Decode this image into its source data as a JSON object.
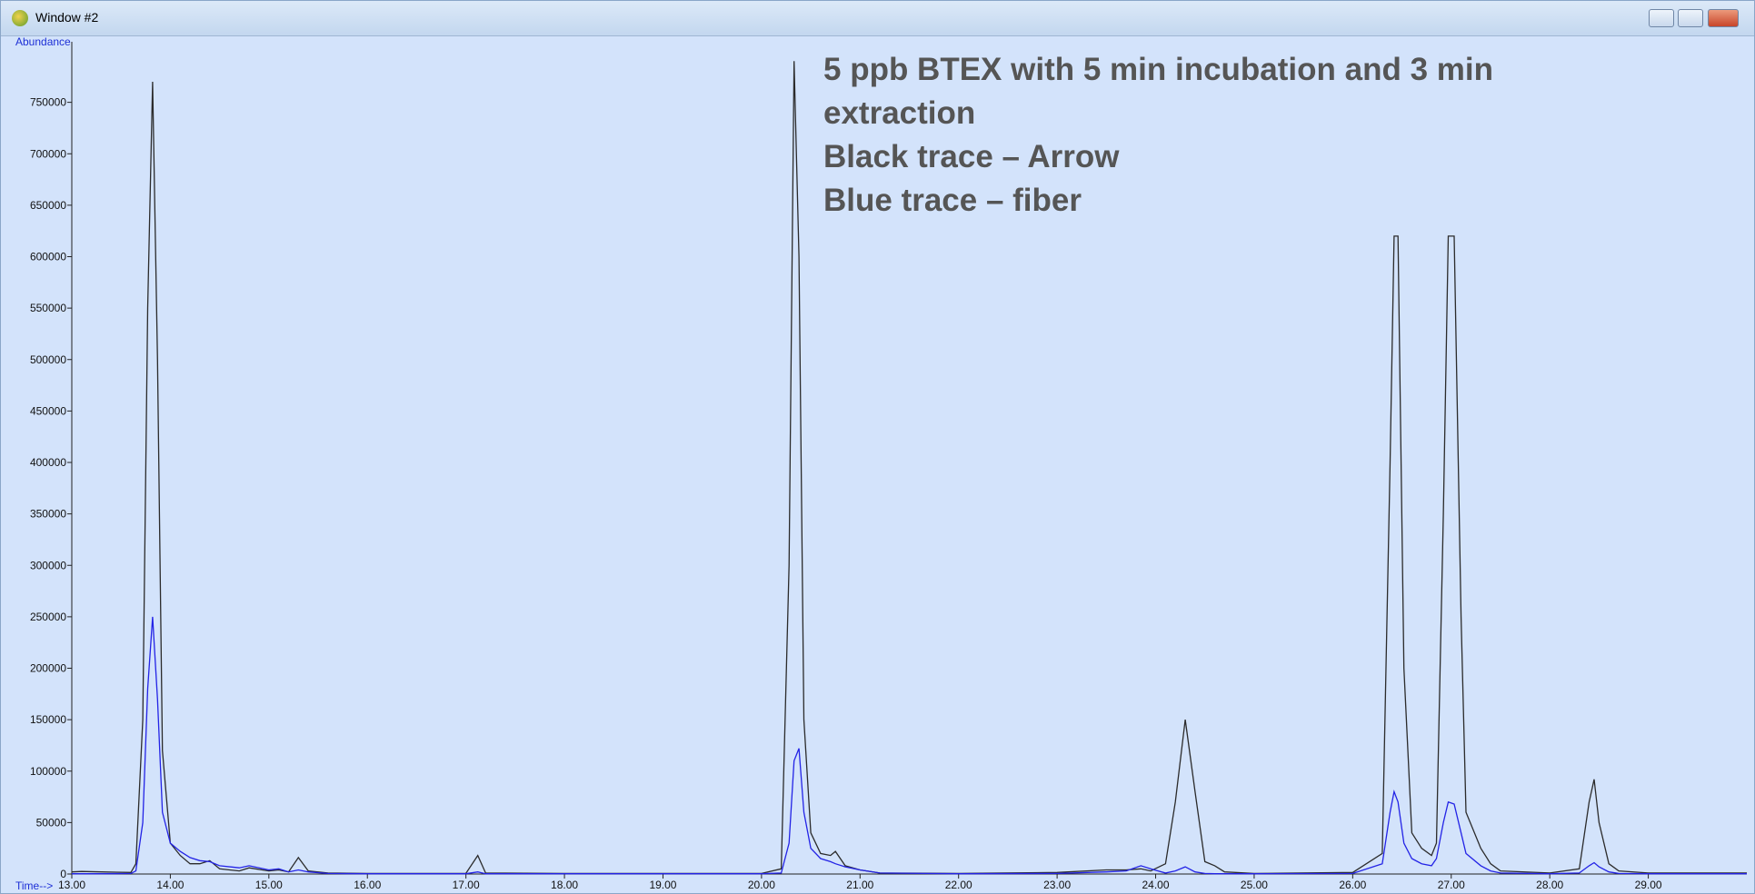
{
  "window": {
    "title": "Window #2"
  },
  "chart_data": {
    "type": "line",
    "ylabel": "Abundance",
    "xlabel": "Time-->",
    "annotations": [
      "5 ppb BTEX with 5 min incubation and 3 min extraction",
      "Black trace – Arrow",
      "Blue trace – fiber"
    ],
    "x": [
      13.0,
      13.1,
      13.3,
      13.6,
      13.65,
      13.72,
      13.77,
      13.82,
      13.87,
      13.92,
      14.0,
      14.1,
      14.2,
      14.3,
      14.4,
      14.5,
      14.7,
      14.8,
      15.0,
      15.1,
      15.2,
      15.3,
      15.4,
      15.6,
      16.0,
      17.0,
      17.12,
      17.2,
      18.0,
      20.0,
      20.2,
      20.28,
      20.33,
      20.38,
      20.43,
      20.5,
      20.6,
      20.7,
      20.75,
      20.85,
      21.0,
      21.2,
      22.0,
      23.0,
      23.5,
      23.7,
      23.85,
      23.95,
      24.1,
      24.2,
      24.3,
      24.4,
      24.5,
      24.6,
      24.7,
      25.0,
      26.0,
      26.3,
      26.38,
      26.42,
      26.46,
      26.52,
      26.6,
      26.7,
      26.8,
      26.85,
      26.92,
      26.97,
      27.03,
      27.1,
      27.15,
      27.3,
      27.4,
      27.5,
      28.0,
      28.3,
      28.4,
      28.45,
      28.5,
      28.6,
      28.7,
      29.0,
      30.0
    ],
    "series": [
      {
        "color": "#2b2b2b",
        "values": [
          2000,
          2500,
          2000,
          1500,
          10000,
          150000,
          550000,
          770000,
          500000,
          120000,
          30000,
          18000,
          10000,
          10000,
          13000,
          5000,
          3000,
          6000,
          3000,
          4000,
          2000,
          16000,
          3000,
          1000,
          500,
          500,
          18000,
          1000,
          500,
          500,
          5000,
          300000,
          790000,
          600000,
          150000,
          40000,
          20000,
          18000,
          22000,
          8000,
          4000,
          1000,
          500,
          1500,
          4000,
          4000,
          5000,
          3000,
          10000,
          70000,
          150000,
          80000,
          12000,
          8000,
          2000,
          500,
          1500,
          20000,
          400000,
          620000,
          620000,
          200000,
          40000,
          25000,
          18000,
          30000,
          350000,
          620000,
          620000,
          250000,
          60000,
          25000,
          10000,
          3000,
          1000,
          5000,
          70000,
          92000,
          50000,
          10000,
          3000,
          1000,
          1000
        ]
      },
      {
        "color": "#2323e6",
        "values": [
          300,
          300,
          300,
          500,
          3000,
          50000,
          180000,
          250000,
          170000,
          60000,
          30000,
          22000,
          16000,
          13000,
          12000,
          8000,
          6000,
          8000,
          4000,
          5000,
          2000,
          4000,
          2000,
          500,
          300,
          300,
          2000,
          300,
          300,
          300,
          1000,
          30000,
          110000,
          122000,
          60000,
          25000,
          15000,
          12000,
          10000,
          7000,
          4000,
          1000,
          300,
          500,
          2000,
          3000,
          8000,
          5000,
          1000,
          3000,
          7000,
          2000,
          500,
          300,
          300,
          300,
          500,
          10000,
          60000,
          80000,
          70000,
          30000,
          15000,
          10000,
          8000,
          15000,
          50000,
          70000,
          68000,
          40000,
          20000,
          8000,
          3000,
          1000,
          300,
          1000,
          8000,
          11000,
          7000,
          2000,
          500,
          300,
          300
        ]
      }
    ],
    "xlim": [
      13,
      30
    ],
    "ylim": [
      0,
      800000
    ],
    "xticks": [
      {
        "value": 13,
        "label": "13.00"
      },
      {
        "value": 14,
        "label": "14.00"
      },
      {
        "value": 15,
        "label": "15.00"
      },
      {
        "value": 16,
        "label": "16.00"
      },
      {
        "value": 17,
        "label": "17.00"
      },
      {
        "value": 18,
        "label": "18.00"
      },
      {
        "value": 19,
        "label": "19.00"
      },
      {
        "value": 20,
        "label": "20.00"
      },
      {
        "value": 21,
        "label": "21.00"
      },
      {
        "value": 22,
        "label": "22.00"
      },
      {
        "value": 23,
        "label": "23.00"
      },
      {
        "value": 24,
        "label": "24.00"
      },
      {
        "value": 25,
        "label": "25.00"
      },
      {
        "value": 26,
        "label": "26.00"
      },
      {
        "value": 27,
        "label": "27.00"
      },
      {
        "value": 28,
        "label": "28.00"
      },
      {
        "value": 29,
        "label": "29.00"
      }
    ],
    "yticks": [
      0,
      50000,
      100000,
      150000,
      200000,
      250000,
      300000,
      350000,
      400000,
      450000,
      500000,
      550000,
      600000,
      650000,
      700000,
      750000
    ]
  }
}
